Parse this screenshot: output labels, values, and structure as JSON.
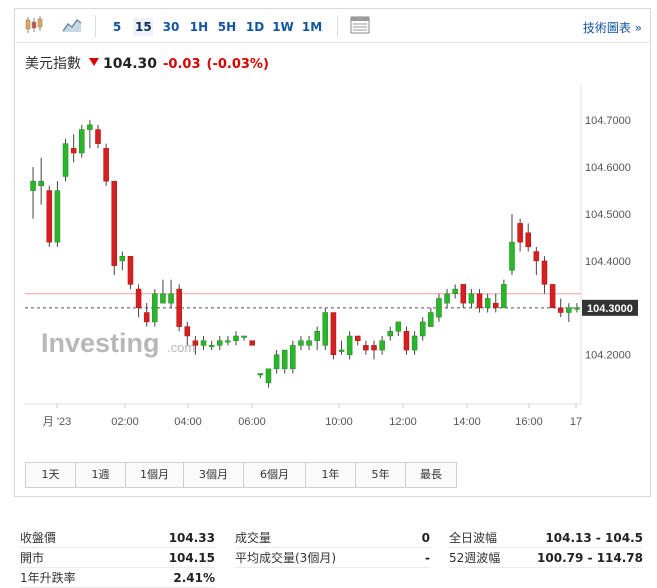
{
  "toolbar": {
    "chart_type_icons": [
      "candlestick-icon",
      "area-chart-icon"
    ],
    "timeframes": [
      "5",
      "15",
      "30",
      "1H",
      "5H",
      "1D",
      "1W",
      "1M"
    ],
    "active_timeframe": "15",
    "right_icon": "table-icon",
    "tech_chart_label": "技術圖表 »"
  },
  "quote": {
    "name": "美元指數",
    "price": "104.30",
    "change": "-0.03",
    "change_pct": "(-0.03%)",
    "direction": "down",
    "color_down": "#d80000",
    "color_up": "#1e9e26"
  },
  "chart_data": {
    "type": "candlestick",
    "watermark": "Investing.com",
    "x_tick_labels": [
      "月 '23",
      "02:00",
      "04:00",
      "06:00",
      "10:00",
      "12:00",
      "14:00",
      "16:00",
      "17"
    ],
    "y_tick_labels": [
      "104.7000",
      "104.6000",
      "104.5000",
      "104.4000",
      "104.3000",
      "104.2000"
    ],
    "ylim": [
      104.095,
      104.775
    ],
    "last_price_label": "104.3000",
    "reference_line": 104.33,
    "current_line": 104.3,
    "candles": [
      {
        "o": 104.55,
        "h": 104.6,
        "l": 104.49,
        "c": 104.57
      },
      {
        "o": 104.56,
        "h": 104.62,
        "l": 104.52,
        "c": 104.57
      },
      {
        "o": 104.55,
        "h": 104.56,
        "l": 104.43,
        "c": 104.44
      },
      {
        "o": 104.44,
        "h": 104.57,
        "l": 104.43,
        "c": 104.55
      },
      {
        "o": 104.58,
        "h": 104.66,
        "l": 104.57,
        "c": 104.65
      },
      {
        "o": 104.64,
        "h": 104.67,
        "l": 104.61,
        "c": 104.63
      },
      {
        "o": 104.63,
        "h": 104.69,
        "l": 104.62,
        "c": 104.68
      },
      {
        "o": 104.68,
        "h": 104.7,
        "l": 104.64,
        "c": 104.69
      },
      {
        "o": 104.68,
        "h": 104.69,
        "l": 104.64,
        "c": 104.65
      },
      {
        "o": 104.64,
        "h": 104.65,
        "l": 104.56,
        "c": 104.57
      },
      {
        "o": 104.57,
        "h": 104.57,
        "l": 104.37,
        "c": 104.39
      },
      {
        "o": 104.4,
        "h": 104.42,
        "l": 104.38,
        "c": 104.41
      },
      {
        "o": 104.41,
        "h": 104.41,
        "l": 104.34,
        "c": 104.35
      },
      {
        "o": 104.34,
        "h": 104.35,
        "l": 104.28,
        "c": 104.3
      },
      {
        "o": 104.29,
        "h": 104.31,
        "l": 104.26,
        "c": 104.27
      },
      {
        "o": 104.27,
        "h": 104.34,
        "l": 104.26,
        "c": 104.33
      },
      {
        "o": 104.31,
        "h": 104.36,
        "l": 104.31,
        "c": 104.33
      },
      {
        "o": 104.31,
        "h": 104.36,
        "l": 104.3,
        "c": 104.33
      },
      {
        "o": 104.34,
        "h": 104.35,
        "l": 104.25,
        "c": 104.26
      },
      {
        "o": 104.26,
        "h": 104.27,
        "l": 104.22,
        "c": 104.24
      },
      {
        "o": 104.23,
        "h": 104.24,
        "l": 104.2,
        "c": 104.22
      },
      {
        "o": 104.22,
        "h": 104.24,
        "l": 104.21,
        "c": 104.23
      },
      {
        "o": 104.22,
        "h": 104.23,
        "l": 104.21,
        "c": 104.22
      },
      {
        "o": 104.22,
        "h": 104.24,
        "l": 104.21,
        "c": 104.23
      },
      {
        "o": 104.23,
        "h": 104.24,
        "l": 104.22,
        "c": 104.23
      },
      {
        "o": 104.23,
        "h": 104.25,
        "l": 104.22,
        "c": 104.24
      },
      {
        "o": 104.24,
        "h": 104.24,
        "l": 104.23,
        "c": 104.24
      },
      {
        "o": 104.23,
        "h": 104.23,
        "l": 104.22,
        "c": 104.22
      },
      {
        "o": 104.16,
        "h": 104.16,
        "l": 104.15,
        "c": 104.16
      },
      {
        "o": 104.14,
        "h": 104.17,
        "l": 104.13,
        "c": 104.17
      },
      {
        "o": 104.17,
        "h": 104.21,
        "l": 104.16,
        "c": 104.2
      },
      {
        "o": 104.17,
        "h": 104.21,
        "l": 104.16,
        "c": 104.21
      },
      {
        "o": 104.17,
        "h": 104.23,
        "l": 104.16,
        "c": 104.22
      },
      {
        "o": 104.22,
        "h": 104.24,
        "l": 104.21,
        "c": 104.23
      },
      {
        "o": 104.22,
        "h": 104.24,
        "l": 104.21,
        "c": 104.23
      },
      {
        "o": 104.23,
        "h": 104.26,
        "l": 104.21,
        "c": 104.25
      },
      {
        "o": 104.22,
        "h": 104.3,
        "l": 104.21,
        "c": 104.29
      },
      {
        "o": 104.29,
        "h": 104.29,
        "l": 104.19,
        "c": 104.2
      },
      {
        "o": 104.21,
        "h": 104.23,
        "l": 104.2,
        "c": 104.21
      },
      {
        "o": 104.2,
        "h": 104.25,
        "l": 104.19,
        "c": 104.24
      },
      {
        "o": 104.24,
        "h": 104.24,
        "l": 104.22,
        "c": 104.23
      },
      {
        "o": 104.22,
        "h": 104.23,
        "l": 104.2,
        "c": 104.21
      },
      {
        "o": 104.22,
        "h": 104.23,
        "l": 104.19,
        "c": 104.21
      },
      {
        "o": 104.21,
        "h": 104.24,
        "l": 104.2,
        "c": 104.23
      },
      {
        "o": 104.24,
        "h": 104.26,
        "l": 104.23,
        "c": 104.25
      },
      {
        "o": 104.25,
        "h": 104.27,
        "l": 104.24,
        "c": 104.27
      },
      {
        "o": 104.25,
        "h": 104.26,
        "l": 104.2,
        "c": 104.21
      },
      {
        "o": 104.21,
        "h": 104.25,
        "l": 104.2,
        "c": 104.24
      },
      {
        "o": 104.24,
        "h": 104.28,
        "l": 104.23,
        "c": 104.27
      },
      {
        "o": 104.26,
        "h": 104.3,
        "l": 104.26,
        "c": 104.29
      },
      {
        "o": 104.28,
        "h": 104.33,
        "l": 104.27,
        "c": 104.32
      },
      {
        "o": 104.31,
        "h": 104.34,
        "l": 104.3,
        "c": 104.33
      },
      {
        "o": 104.33,
        "h": 104.35,
        "l": 104.32,
        "c": 104.34
      },
      {
        "o": 104.35,
        "h": 104.35,
        "l": 104.3,
        "c": 104.31
      },
      {
        "o": 104.31,
        "h": 104.34,
        "l": 104.3,
        "c": 104.33
      },
      {
        "o": 104.33,
        "h": 104.34,
        "l": 104.29,
        "c": 104.3
      },
      {
        "o": 104.3,
        "h": 104.33,
        "l": 104.29,
        "c": 104.32
      },
      {
        "o": 104.31,
        "h": 104.33,
        "l": 104.29,
        "c": 104.3
      },
      {
        "o": 104.3,
        "h": 104.36,
        "l": 104.3,
        "c": 104.35
      },
      {
        "o": 104.38,
        "h": 104.5,
        "l": 104.37,
        "c": 104.44
      },
      {
        "o": 104.48,
        "h": 104.49,
        "l": 104.42,
        "c": 104.44
      },
      {
        "o": 104.46,
        "h": 104.48,
        "l": 104.42,
        "c": 104.43
      },
      {
        "o": 104.42,
        "h": 104.43,
        "l": 104.37,
        "c": 104.4
      },
      {
        "o": 104.4,
        "h": 104.41,
        "l": 104.33,
        "c": 104.35
      },
      {
        "o": 104.35,
        "h": 104.35,
        "l": 104.3,
        "c": 104.3
      },
      {
        "o": 104.3,
        "h": 104.32,
        "l": 104.28,
        "c": 104.29
      },
      {
        "o": 104.29,
        "h": 104.31,
        "l": 104.27,
        "c": 104.3
      },
      {
        "o": 104.3,
        "h": 104.31,
        "l": 104.29,
        "c": 104.3
      }
    ]
  },
  "ranges": [
    "1天",
    "1週",
    "1個月",
    "3個月",
    "6個月",
    "1年",
    "5年",
    "最長"
  ],
  "stats": {
    "col1": [
      {
        "label": "收盤價",
        "value": "104.33"
      },
      {
        "label": "開市",
        "value": "104.15"
      },
      {
        "label": "1年升跌率",
        "value": "2.41%"
      }
    ],
    "col2": [
      {
        "label": "成交量",
        "value": "0"
      },
      {
        "label": "平均成交量(3個月)",
        "value": "-"
      }
    ],
    "col3": [
      {
        "label": "全日波幅",
        "value": "104.13 - 104.5"
      },
      {
        "label": "52週波幅",
        "value": "100.79 - 114.78"
      }
    ]
  }
}
